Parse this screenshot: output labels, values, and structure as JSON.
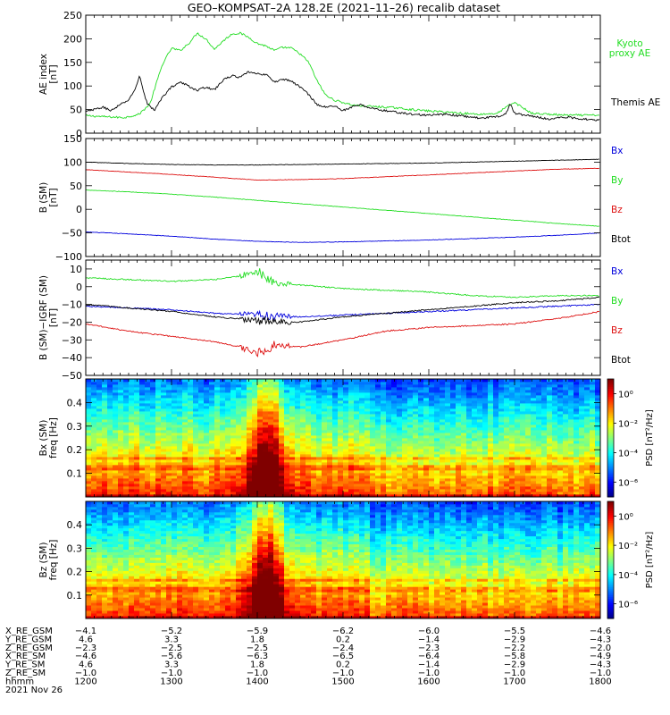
{
  "title": "GEO–KOMPSAT–2A 128.2E (2021–11–26) recalib dataset",
  "colors": {
    "green": "#22dd22",
    "black": "#000000",
    "red": "#dd1111",
    "blue": "#0000dd"
  },
  "chart_data": [
    {
      "type": "line",
      "ylabel_lines": [
        "AE index",
        "[nT]"
      ],
      "ylim": [
        0,
        250
      ],
      "yticks": [
        0,
        50,
        100,
        150,
        200,
        250
      ],
      "xlim": [
        1200,
        1800
      ],
      "series": [
        {
          "name": "Kyoto proxy AE",
          "label_lines": [
            "Kyoto",
            "proxy AE"
          ],
          "color": "#22dd22",
          "x": [
            1200,
            1220,
            1245,
            1262,
            1275,
            1283,
            1290,
            1300,
            1310,
            1320,
            1330,
            1340,
            1350,
            1360,
            1370,
            1380,
            1390,
            1400,
            1410,
            1420,
            1430,
            1440,
            1450,
            1460,
            1470,
            1480,
            1490,
            1500,
            1510,
            1520,
            1540,
            1560,
            1580,
            1600,
            1620,
            1640,
            1660,
            1680,
            1690,
            1700,
            1720,
            1740,
            1760,
            1780,
            1800
          ],
          "y": [
            37,
            35,
            33,
            40,
            62,
            110,
            148,
            180,
            175,
            190,
            212,
            200,
            178,
            195,
            210,
            212,
            203,
            190,
            185,
            175,
            182,
            180,
            168,
            150,
            110,
            80,
            70,
            65,
            60,
            58,
            56,
            54,
            50,
            47,
            45,
            42,
            40,
            42,
            55,
            65,
            42,
            40,
            38,
            38,
            38
          ]
        },
        {
          "name": "Themis AE",
          "label_lines": [
            "Themis AE"
          ],
          "color": "#000000",
          "x": [
            1200,
            1210,
            1220,
            1230,
            1240,
            1250,
            1258,
            1263,
            1267,
            1272,
            1280,
            1290,
            1300,
            1310,
            1320,
            1330,
            1340,
            1350,
            1360,
            1370,
            1380,
            1390,
            1400,
            1410,
            1420,
            1430,
            1440,
            1450,
            1460,
            1470,
            1480,
            1490,
            1500,
            1510,
            1520,
            1540,
            1560,
            1580,
            1600,
            1620,
            1640,
            1660,
            1680,
            1690,
            1695,
            1700,
            1720,
            1740,
            1760,
            1780,
            1800
          ],
          "y": [
            45,
            50,
            55,
            48,
            60,
            70,
            95,
            122,
            90,
            62,
            48,
            78,
            98,
            108,
            100,
            90,
            98,
            92,
            112,
            122,
            118,
            130,
            125,
            125,
            108,
            115,
            110,
            98,
            82,
            60,
            55,
            58,
            48,
            55,
            60,
            50,
            45,
            40,
            38,
            40,
            36,
            32,
            35,
            42,
            62,
            42,
            36,
            30,
            34,
            30,
            28
          ]
        }
      ]
    },
    {
      "type": "line",
      "ylabel_lines": [
        "B (SM)",
        "[nT]"
      ],
      "ylim": [
        -100,
        150
      ],
      "yticks": [
        -100,
        -50,
        0,
        50,
        100,
        150
      ],
      "xlim": [
        1200,
        1800
      ],
      "series": [
        {
          "name": "Bx",
          "color": "#0000dd",
          "x": [
            1200,
            1250,
            1300,
            1350,
            1400,
            1450,
            1500,
            1550,
            1600,
            1650,
            1700,
            1750,
            1800
          ],
          "y": [
            -48,
            -52,
            -57,
            -63,
            -68,
            -70,
            -69,
            -67,
            -65,
            -62,
            -59,
            -55,
            -50
          ]
        },
        {
          "name": "By",
          "color": "#22dd22",
          "x": [
            1200,
            1250,
            1300,
            1350,
            1400,
            1450,
            1500,
            1550,
            1600,
            1650,
            1700,
            1750,
            1800
          ],
          "y": [
            41,
            37,
            32,
            26,
            19,
            12,
            5,
            -2,
            -9,
            -16,
            -23,
            -30,
            -36
          ]
        },
        {
          "name": "Bz",
          "color": "#dd1111",
          "x": [
            1200,
            1250,
            1300,
            1350,
            1400,
            1450,
            1500,
            1550,
            1600,
            1650,
            1700,
            1750,
            1800
          ],
          "y": [
            84,
            79,
            74,
            68,
            62,
            63,
            65,
            69,
            73,
            77,
            81,
            85,
            87
          ]
        },
        {
          "name": "Btot",
          "color": "#000000",
          "x": [
            1200,
            1250,
            1300,
            1350,
            1400,
            1450,
            1500,
            1550,
            1600,
            1650,
            1700,
            1750,
            1800
          ],
          "y": [
            100,
            97,
            95,
            94,
            94,
            95,
            96,
            97,
            98,
            100,
            102,
            104,
            106
          ]
        }
      ]
    },
    {
      "type": "line",
      "ylabel_lines": [
        "B (SM)−IGRF (SM)",
        "[nT]"
      ],
      "ylim": [
        -50,
        15
      ],
      "yticks": [
        -50,
        -40,
        -30,
        -20,
        -10,
        0,
        10
      ],
      "xlim": [
        1200,
        1800
      ],
      "series": [
        {
          "name": "Bx",
          "color": "#0000dd",
          "x": [
            1200,
            1250,
            1300,
            1350,
            1400,
            1450,
            1500,
            1550,
            1600,
            1650,
            1700,
            1750,
            1800
          ],
          "y": [
            -11,
            -12,
            -13,
            -15,
            -16,
            -17,
            -16,
            -15,
            -14,
            -13,
            -12,
            -11,
            -10
          ]
        },
        {
          "name": "By",
          "color": "#22dd22",
          "x": [
            1200,
            1250,
            1300,
            1350,
            1380,
            1400,
            1420,
            1450,
            1500,
            1550,
            1600,
            1650,
            1700,
            1750,
            1800
          ],
          "y": [
            5,
            4,
            3,
            4,
            6,
            9,
            2,
            1,
            -1,
            -2,
            -3,
            -5,
            -6,
            -5,
            -5
          ]
        },
        {
          "name": "Bz",
          "color": "#dd1111",
          "x": [
            1200,
            1250,
            1300,
            1350,
            1380,
            1400,
            1420,
            1450,
            1500,
            1550,
            1600,
            1650,
            1700,
            1750,
            1800
          ],
          "y": [
            -21,
            -25,
            -28,
            -31,
            -34,
            -38,
            -33,
            -34,
            -30,
            -25,
            -23,
            -22,
            -21,
            -18,
            -14
          ]
        },
        {
          "name": "Btot",
          "color": "#000000",
          "x": [
            1200,
            1250,
            1300,
            1350,
            1400,
            1450,
            1500,
            1550,
            1600,
            1650,
            1700,
            1750,
            1800
          ],
          "y": [
            -10,
            -12,
            -14,
            -17,
            -19,
            -20,
            -17,
            -15,
            -13,
            -11,
            -9,
            -8,
            -6
          ]
        }
      ]
    },
    {
      "type": "heatmap",
      "ylabel_lines": [
        "Bx (SM)",
        "freq [Hz]"
      ],
      "ylim": [
        0,
        0.5
      ],
      "yticks": [
        0.1,
        0.2,
        0.3,
        0.4
      ],
      "xlim": [
        1200,
        1800
      ],
      "colorbar_label": "PSD [nT²/Hz]",
      "colorbar_ticks": [
        "10⁰",
        "10⁻²",
        "10⁻⁴",
        "10⁻⁶"
      ],
      "colorbar_exponents": [
        0,
        -2,
        -4,
        -6
      ]
    },
    {
      "type": "heatmap",
      "ylabel_lines": [
        "Bz (SM)",
        "freq [Hz]"
      ],
      "ylim": [
        0,
        0.5
      ],
      "yticks": [
        0.1,
        0.2,
        0.3,
        0.4
      ],
      "xlim": [
        1200,
        1800
      ],
      "colorbar_label": "PSD [nT²/Hz]",
      "colorbar_ticks": [
        "10⁰",
        "10⁻²",
        "10⁻⁴",
        "10⁻⁶"
      ],
      "colorbar_exponents": [
        0,
        -2,
        -4,
        -6
      ]
    }
  ],
  "x_axis": {
    "rows": [
      {
        "label": "X_RE_GSM",
        "values": [
          "−4.1",
          "−5.2",
          "−5.9",
          "−6.2",
          "−6.0",
          "−5.5",
          "−4.6"
        ]
      },
      {
        "label": "Y_RE_GSM",
        "values": [
          "4.6",
          "3.3",
          "1.8",
          "0.2",
          "−1.4",
          "−2.9",
          "−4.3"
        ]
      },
      {
        "label": "Z_RE_GSM",
        "values": [
          "−2.3",
          "−2.5",
          "−2.5",
          "−2.4",
          "−2.3",
          "−2.2",
          "−2.0"
        ]
      },
      {
        "label": "X_RE_SM",
        "values": [
          "−4.6",
          "−5.6",
          "−6.3",
          "−6.5",
          "−6.4",
          "−5.8",
          "−4.9"
        ]
      },
      {
        "label": "Y_RE_SM",
        "values": [
          "4.6",
          "3.3",
          "1.8",
          "0.2",
          "−1.4",
          "−2.9",
          "−4.3"
        ]
      },
      {
        "label": "Z_RE_SM",
        "values": [
          "−1.0",
          "−1.0",
          "−1.0",
          "−1.0",
          "−1.0",
          "−1.0",
          "−1.0"
        ]
      },
      {
        "label": "hhmm",
        "values": [
          "1200",
          "1300",
          "1400",
          "1500",
          "1600",
          "1700",
          "1800"
        ]
      }
    ],
    "date": "2021 Nov 26"
  }
}
